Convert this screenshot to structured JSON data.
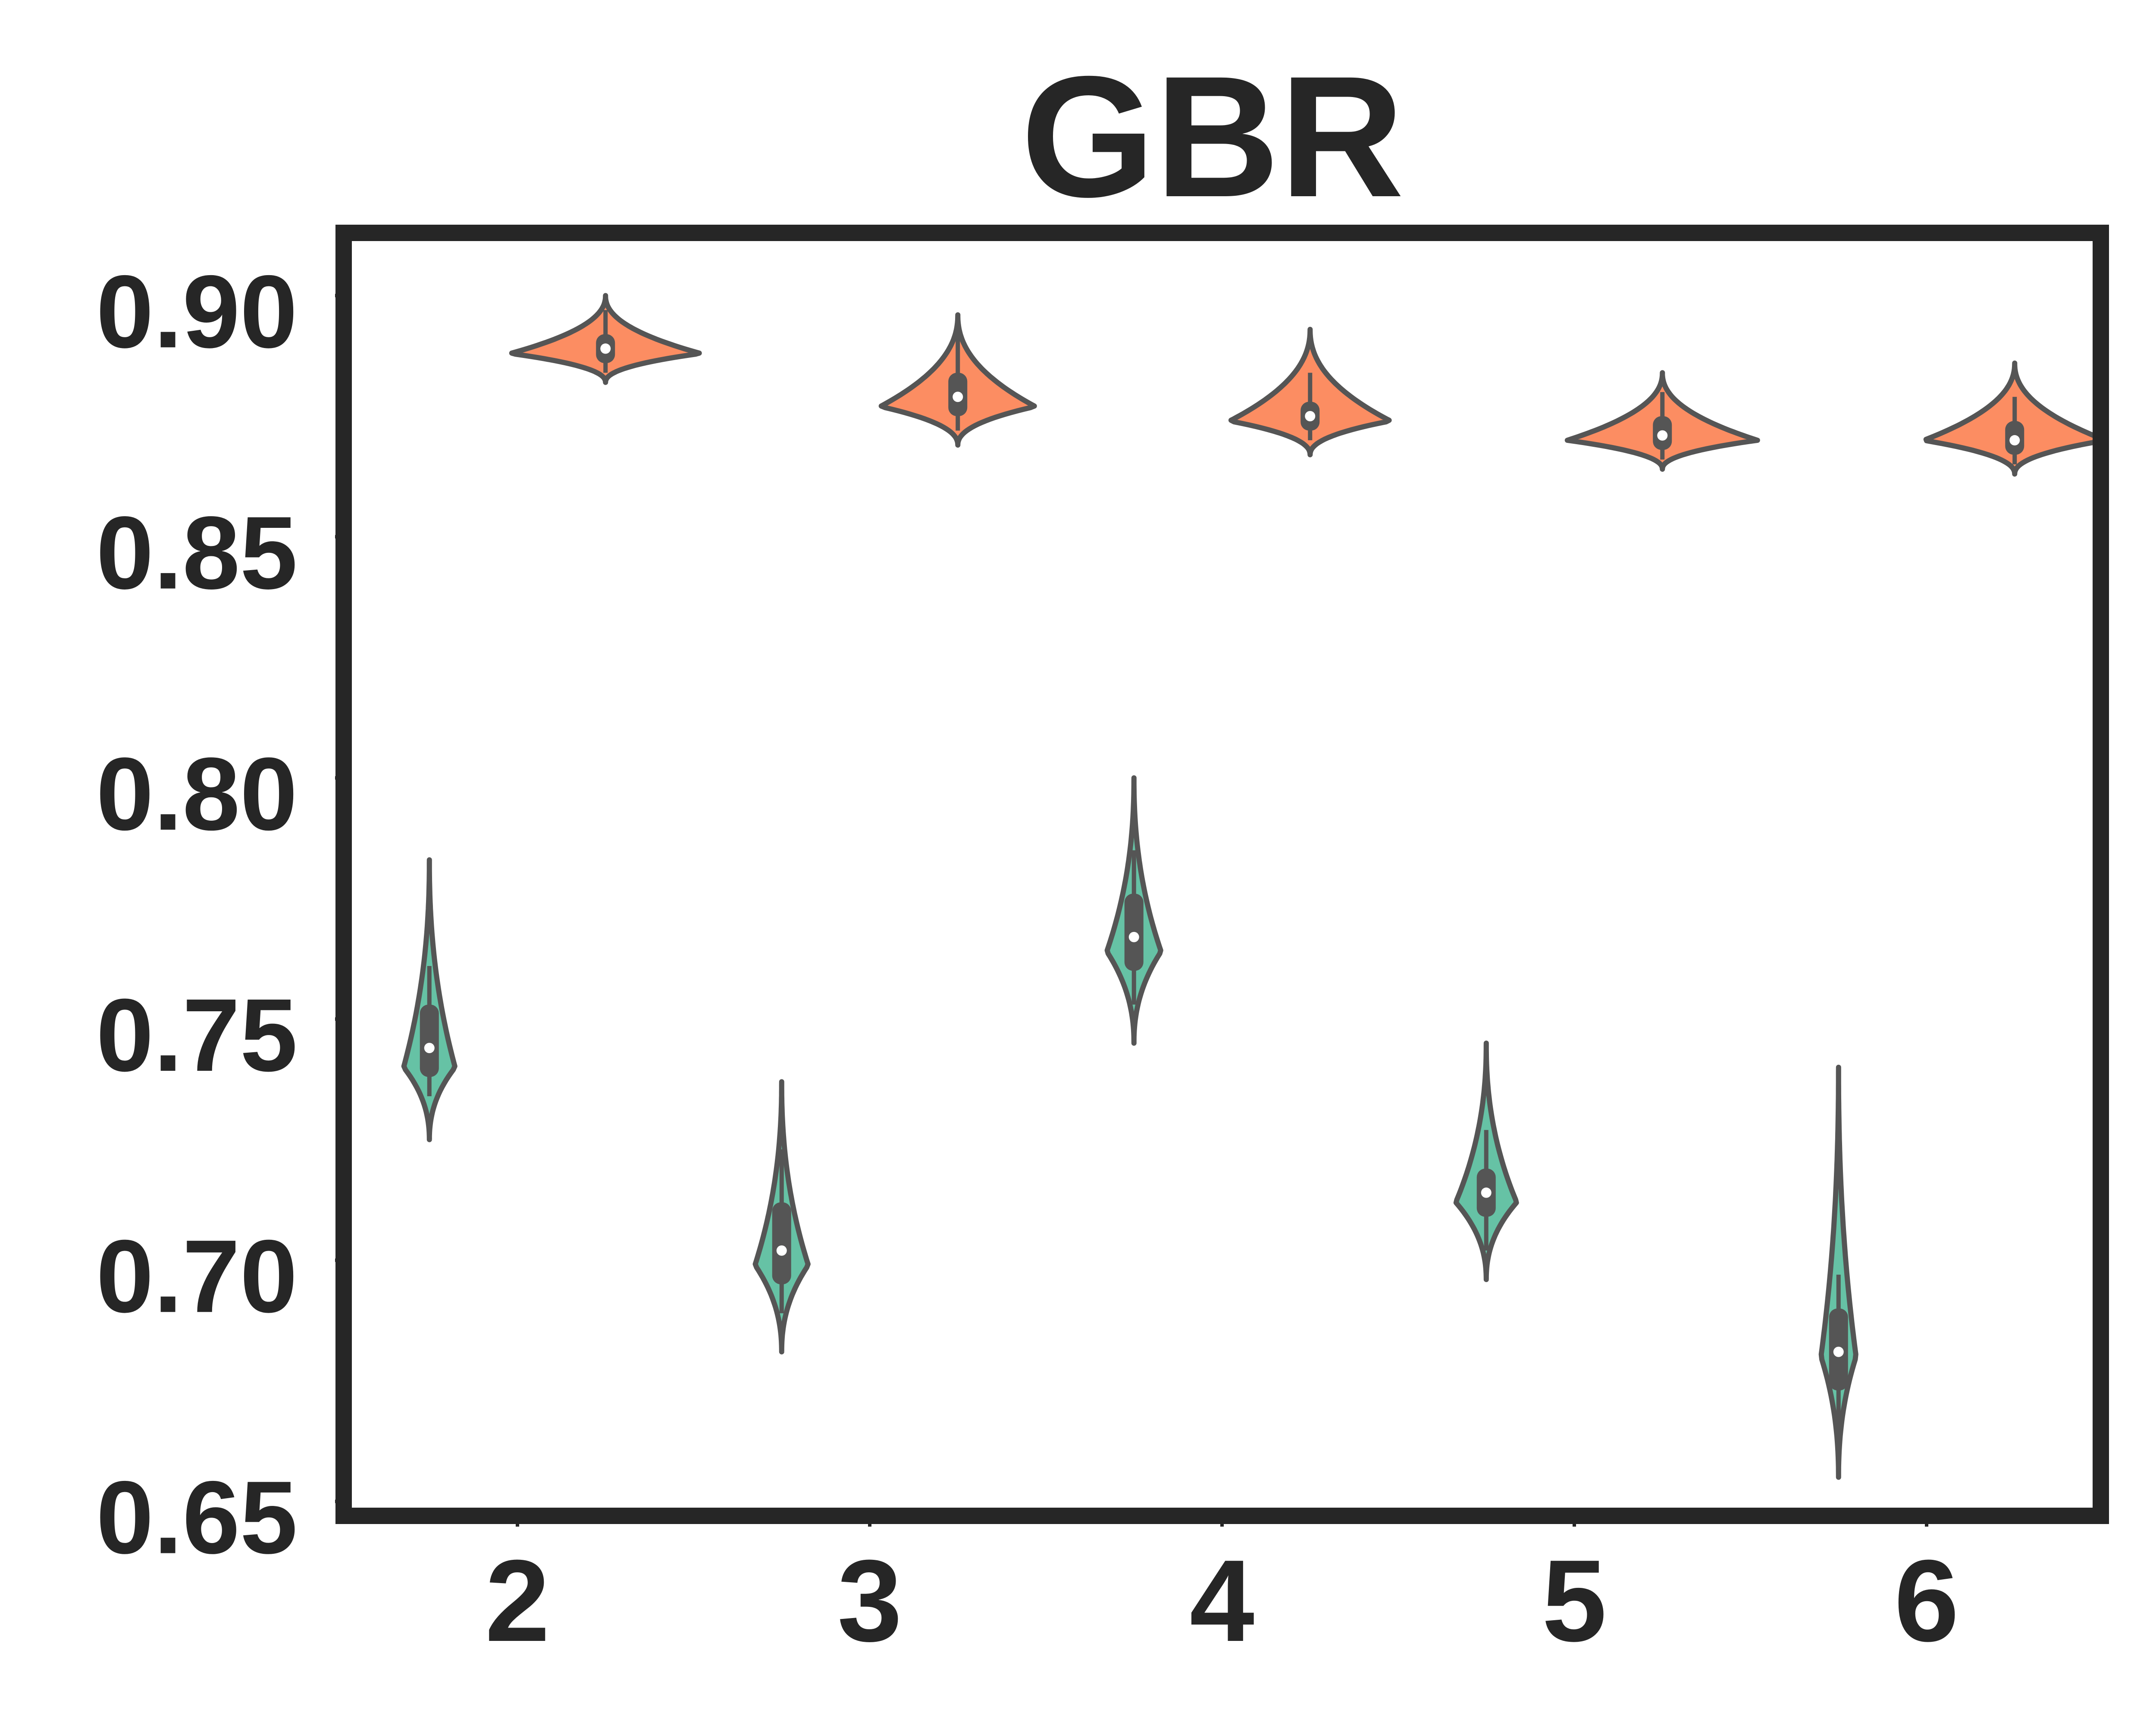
{
  "chart_data": {
    "type": "violin",
    "title": "GBR",
    "xlabel": "",
    "ylabel": "",
    "categories": [
      "2",
      "3",
      "4",
      "5",
      "6"
    ],
    "yticks": [
      "0.90",
      "0.85",
      "0.80",
      "0.75",
      "0.70",
      "0.65"
    ],
    "ytick_values": [
      0.9,
      0.85,
      0.8,
      0.75,
      0.7,
      0.65
    ],
    "ylim": [
      0.647,
      0.913
    ],
    "grid": false,
    "legend": "none",
    "series": [
      {
        "color": "#66c2a5",
        "offset": -0.25,
        "violins": [
          {
            "category": "2",
            "min": 0.725,
            "max": 0.783,
            "q1": 0.738,
            "q3": 0.753,
            "median": 0.744,
            "whisker_low": 0.734,
            "whisker_high": 0.761,
            "mode": 0.74
          },
          {
            "category": "3",
            "min": 0.681,
            "max": 0.737,
            "q1": 0.695,
            "q3": 0.712,
            "median": 0.702,
            "whisker_low": 0.689,
            "whisker_high": 0.723,
            "mode": 0.699
          },
          {
            "category": "4",
            "min": 0.745,
            "max": 0.8,
            "q1": 0.76,
            "q3": 0.776,
            "median": 0.767,
            "whisker_low": 0.753,
            "whisker_high": 0.785,
            "mode": 0.764
          },
          {
            "category": "5",
            "min": 0.696,
            "max": 0.745,
            "q1": 0.709,
            "q3": 0.719,
            "median": 0.714,
            "whisker_low": 0.702,
            "whisker_high": 0.727,
            "mode": 0.712
          },
          {
            "category": "6",
            "min": 0.655,
            "max": 0.74,
            "q1": 0.673,
            "q3": 0.69,
            "median": 0.681,
            "whisker_low": 0.665,
            "whisker_high": 0.697,
            "mode": 0.68
          }
        ]
      },
      {
        "color": "#fc8d62",
        "offset": 0.25,
        "violins": [
          {
            "category": "2",
            "min": 0.882,
            "max": 0.9,
            "q1": 0.886,
            "q3": 0.892,
            "median": 0.889,
            "whisker_low": 0.884,
            "whisker_high": 0.897,
            "mode": 0.888
          },
          {
            "category": "3",
            "min": 0.869,
            "max": 0.896,
            "q1": 0.875,
            "q3": 0.884,
            "median": 0.879,
            "whisker_low": 0.872,
            "whisker_high": 0.892,
            "mode": 0.877
          },
          {
            "category": "4",
            "min": 0.867,
            "max": 0.893,
            "q1": 0.872,
            "q3": 0.878,
            "median": 0.875,
            "whisker_low": 0.87,
            "whisker_high": 0.884,
            "mode": 0.874
          },
          {
            "category": "5",
            "min": 0.864,
            "max": 0.884,
            "q1": 0.868,
            "q3": 0.875,
            "median": 0.871,
            "whisker_low": 0.866,
            "whisker_high": 0.88,
            "mode": 0.87
          },
          {
            "category": "6",
            "min": 0.863,
            "max": 0.886,
            "q1": 0.867,
            "q3": 0.874,
            "median": 0.87,
            "whisker_low": 0.865,
            "whisker_high": 0.879,
            "mode": 0.87
          }
        ]
      }
    ],
    "colors": {
      "outline": "#555555",
      "frame": "#262626",
      "text": "#262626",
      "median_dot": "#ffffff"
    }
  }
}
